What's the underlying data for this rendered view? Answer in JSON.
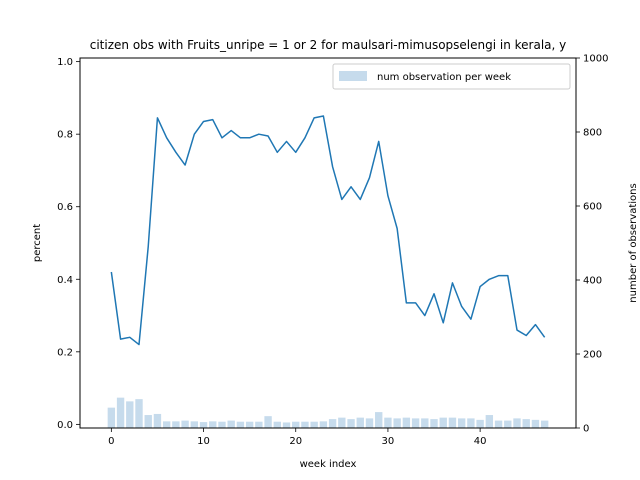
{
  "chart_data": {
    "type": "bar+line",
    "title": "citizen obs with Fruits_unripe = 1 or 2 for maulsari-mimusopselengi in kerala, y",
    "xlabel": "week index",
    "ylabel_left": "percent",
    "ylabel_right": "number of observations",
    "xlim": [
      -3.4,
      50.4
    ],
    "ylim_left": [
      -0.01,
      1.01
    ],
    "ylim_right": [
      0,
      1000
    ],
    "xticks": [
      0,
      10,
      20,
      30,
      40
    ],
    "yticks_left": [
      0.0,
      0.2,
      0.4,
      0.6,
      0.8,
      1.0
    ],
    "yticks_left_labels": [
      "0.0",
      "0.2",
      "0.4",
      "0.6",
      "0.8",
      "1.0"
    ],
    "yticks_right": [
      0,
      200,
      400,
      600,
      800,
      1000
    ],
    "yticks_right_labels": [
      "0",
      "200",
      "400",
      "600",
      "800",
      "1000"
    ],
    "legend_position": "top-right",
    "grid": false,
    "line_color": "#1f77b4",
    "bar_color": "#c6dbec",
    "series": [
      {
        "name": "num observation per week",
        "kind": "bar",
        "axis": "right",
        "x": [
          0,
          1,
          2,
          3,
          4,
          5,
          6,
          7,
          8,
          9,
          10,
          11,
          12,
          13,
          14,
          15,
          16,
          17,
          18,
          19,
          20,
          21,
          22,
          23,
          24,
          25,
          26,
          27,
          28,
          29,
          30,
          31,
          32,
          33,
          34,
          35,
          36,
          37,
          38,
          39,
          40,
          41,
          42,
          43,
          44,
          45,
          46,
          47
        ],
        "values": [
          55,
          82,
          72,
          78,
          35,
          38,
          18,
          18,
          20,
          18,
          16,
          18,
          17,
          20,
          17,
          17,
          17,
          32,
          17,
          15,
          17,
          17,
          17,
          18,
          24,
          28,
          24,
          28,
          26,
          43,
          28,
          26,
          28,
          26,
          26,
          24,
          28,
          28,
          26,
          26,
          22,
          35,
          20,
          20,
          26,
          24,
          22,
          20
        ]
      },
      {
        "kind": "line",
        "axis": "left",
        "x": [
          0,
          1,
          2,
          3,
          4,
          5,
          6,
          7,
          8,
          9,
          10,
          11,
          12,
          13,
          14,
          15,
          16,
          17,
          18,
          19,
          20,
          21,
          22,
          23,
          24,
          25,
          26,
          27,
          28,
          29,
          30,
          31,
          32,
          33,
          34,
          35,
          36,
          37,
          38,
          39,
          40,
          41,
          42,
          43,
          44,
          45,
          46,
          47
        ],
        "values": [
          0.42,
          0.235,
          0.24,
          0.22,
          0.49,
          0.845,
          0.79,
          0.75,
          0.715,
          0.8,
          0.835,
          0.84,
          0.79,
          0.81,
          0.79,
          0.79,
          0.8,
          0.795,
          0.75,
          0.78,
          0.75,
          0.79,
          0.845,
          0.85,
          0.71,
          0.62,
          0.655,
          0.62,
          0.68,
          0.78,
          0.63,
          0.54,
          0.335,
          0.335,
          0.3,
          0.36,
          0.28,
          0.39,
          0.325,
          0.29,
          0.38,
          0.4,
          0.41,
          0.41,
          0.26,
          0.245,
          0.275,
          0.24
        ]
      }
    ]
  }
}
